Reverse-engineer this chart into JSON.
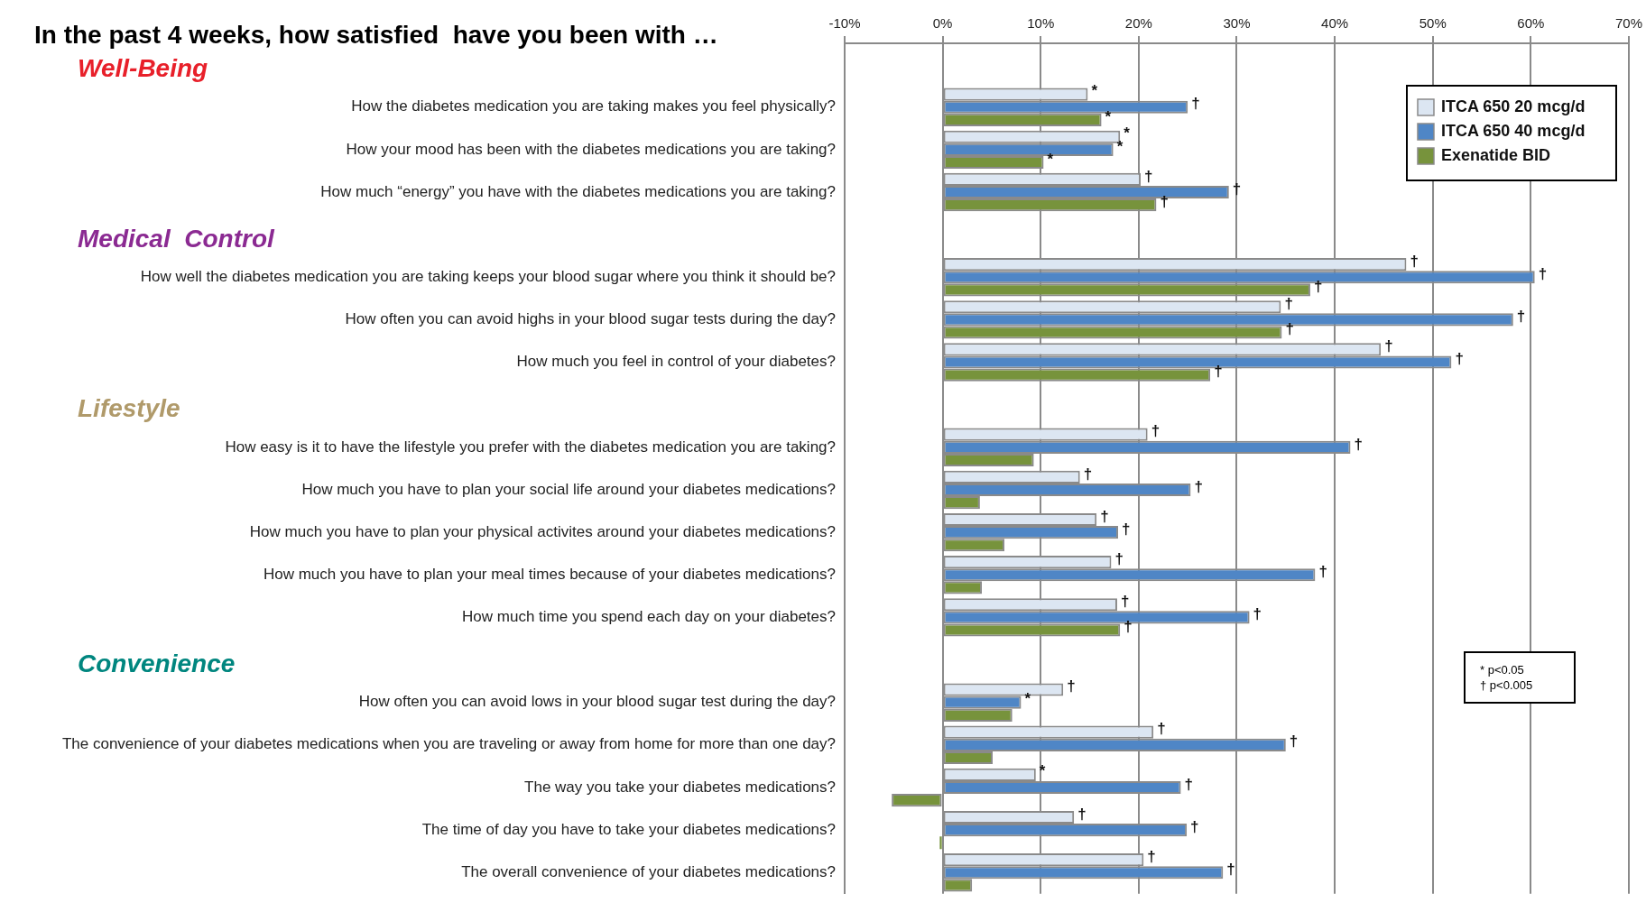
{
  "chart_data": {
    "type": "bar",
    "orientation": "horizontal",
    "title": "In the past 4 weeks, how satisfied  have you been with …",
    "categories": [
      null,
      "How the diabetes medication you are taking makes you feel physically?",
      "How your mood has been with the diabetes medications you are taking?",
      "How much “energy” you have with the diabetes medications you are taking?",
      null,
      "How well the diabetes medication you are taking keeps your blood sugar where you think it should be?",
      "How often you can avoid highs in your blood sugar tests during the day?",
      "How much you feel in control of your diabetes?",
      null,
      "How easy is it to have the lifestyle you prefer with the diabetes medication you are taking?",
      "How much you have to plan your social life around your diabetes medications?",
      "How much you have to plan your physical activites around your diabetes medications?",
      "How much you have to plan your meal times because of your diabetes medications?",
      "How much time you spend each day on your diabetes?",
      null,
      "How often you can avoid lows in your blood sugar test during the day?",
      "The convenience of your diabetes medications when you are traveling or away from home for more than one day?",
      "The way you take your diabetes medications?",
      "The time of day you have to take your diabetes medications?",
      "The overall convenience of your diabetes medications?"
    ],
    "series": [
      {
        "name": "ITCA 650 20 mcg/d",
        "color": "#dce6f2",
        "values": [
          null,
          14.8,
          18.1,
          20.2,
          null,
          47.3,
          34.5,
          44.7,
          null,
          20.9,
          14.0,
          15.7,
          17.2,
          17.8,
          null,
          12.3,
          21.5,
          9.5,
          13.4,
          20.5
        ],
        "value_labels": [
          null,
          "*",
          "*",
          "†",
          null,
          "†",
          "†",
          "†",
          null,
          "†",
          "†",
          "†",
          "†",
          "†",
          null,
          "†",
          "†",
          "*",
          "†",
          "†"
        ]
      },
      {
        "name": "ITCA 650 40 mcg/d",
        "color": "#4f86c6",
        "values": [
          null,
          25.0,
          17.4,
          29.2,
          null,
          60.4,
          58.2,
          51.9,
          null,
          41.6,
          25.3,
          17.9,
          38.0,
          31.3,
          null,
          8.0,
          35.0,
          24.3,
          24.9,
          28.6
        ],
        "value_labels": [
          null,
          "†",
          "*",
          "†",
          null,
          "†",
          "†",
          "†",
          null,
          "†",
          "†",
          "†",
          "†",
          "†",
          null,
          "*",
          "†",
          "†",
          "†",
          "†"
        ]
      },
      {
        "name": "Exenatide BID",
        "color": "#77933c",
        "values": [
          null,
          16.2,
          10.3,
          21.8,
          null,
          37.5,
          34.6,
          27.3,
          null,
          9.3,
          3.8,
          6.3,
          4.0,
          18.1,
          null,
          7.1,
          5.1,
          -5.2,
          -0.3,
          3.0
        ],
        "value_labels": [
          null,
          "*",
          "*",
          "†",
          null,
          "†",
          "†",
          "†",
          null,
          null,
          null,
          null,
          null,
          "†",
          null,
          null,
          null,
          null,
          null,
          null
        ]
      }
    ],
    "xlim": [
      -10,
      70
    ],
    "xticks": [
      {
        "value": -10,
        "label": "-10%"
      },
      {
        "value": 0,
        "label": "0%"
      },
      {
        "value": 10,
        "label": "10%"
      },
      {
        "value": 20,
        "label": "20%"
      },
      {
        "value": 30,
        "label": "30%"
      },
      {
        "value": 40,
        "label": "40%"
      },
      {
        "value": 50,
        "label": "50%"
      },
      {
        "value": 60,
        "label": "60%"
      },
      {
        "value": 70,
        "label": "70%"
      }
    ],
    "grid": "x",
    "legend": "top right",
    "annotations": [
      "Well-Being",
      "Medical  Control",
      "Lifestyle",
      "Convenience",
      "*  p<0.05",
      "† p<0.005"
    ]
  }
}
